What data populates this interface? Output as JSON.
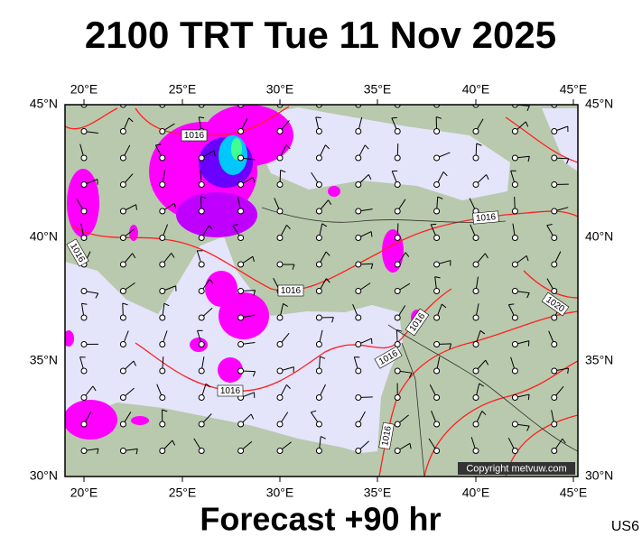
{
  "header": {
    "title": "2100 TRT Tue 11 Nov 2025"
  },
  "axes": {
    "lon_labels": [
      "20°E",
      "25°E",
      "30°E",
      "35°E",
      "40°E",
      "45°E"
    ],
    "lat_labels": [
      "45°N",
      "40°N",
      "35°N",
      "30°N"
    ]
  },
  "isobar_labels": [
    "1016",
    "1016",
    "1016",
    "1016",
    "1016",
    "1016",
    "1016",
    "1016",
    "1020"
  ],
  "copyright": "Copyright metvuw.com",
  "footer": {
    "forecast": "Forecast +90 hr",
    "model": "US6"
  }
}
